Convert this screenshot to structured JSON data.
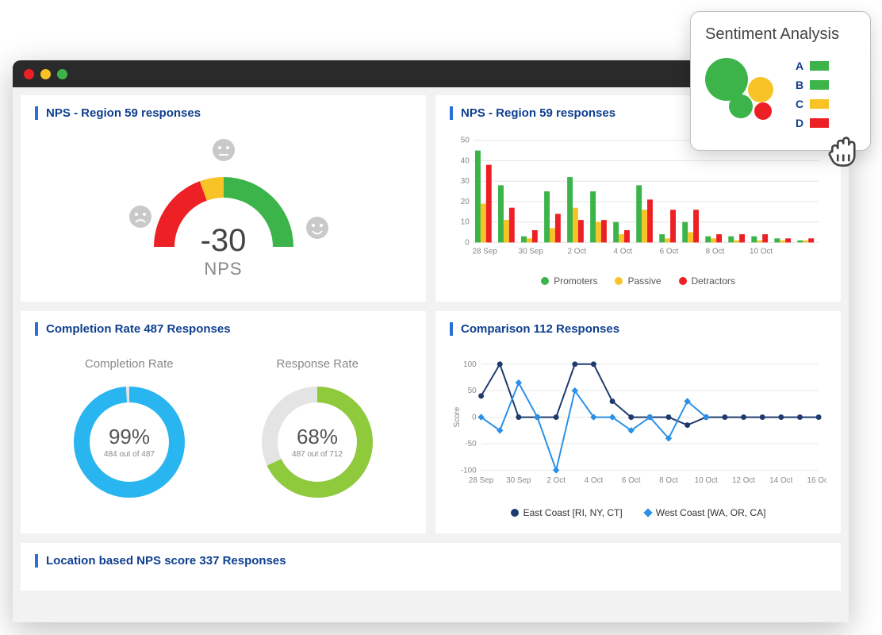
{
  "colors": {
    "promoter": "#3cb44a",
    "passive": "#f7c327",
    "detractor": "#ec2025",
    "donut_blue": "#29b6f0",
    "donut_green": "#8fc93c",
    "donut_track": "#e4e4e4",
    "title": "#0f3f8f",
    "accent": "#2a6fd6",
    "east_line": "#1f3a6e",
    "west_line": "#2a90e8",
    "grid": "#e6e6e6",
    "face": "#c9c9c9"
  },
  "gauge": {
    "title": "NPS - Region 59 responses",
    "score": "-30",
    "label": "NPS",
    "segments": [
      {
        "color": "#ec2025",
        "start": 180,
        "end": 110
      },
      {
        "color": "#f7c327",
        "start": 110,
        "end": 90
      },
      {
        "color": "#3cb44a",
        "start": 90,
        "end": 0
      }
    ]
  },
  "barChart": {
    "title": "NPS - Region 59 responses",
    "ylim": [
      0,
      50
    ],
    "ytick_step": 10,
    "categories": [
      "28 Sep",
      "",
      "30 Sep",
      "",
      "2 Oct",
      "",
      "4 Oct",
      "",
      "6 Oct",
      "",
      "8 Oct",
      "",
      "10 Oct",
      "",
      ""
    ],
    "series": [
      {
        "name": "Promoters",
        "color": "#3cb44a",
        "values": [
          45,
          28,
          3,
          25,
          32,
          25,
          10,
          28,
          4,
          10,
          3,
          3,
          3,
          2,
          1
        ]
      },
      {
        "name": "Passive",
        "color": "#f7c327",
        "values": [
          19,
          11,
          2,
          7,
          17,
          10,
          4,
          16,
          2,
          5,
          2,
          1,
          1,
          1,
          1
        ]
      },
      {
        "name": "Detractors",
        "color": "#ec2025",
        "values": [
          38,
          17,
          6,
          14,
          11,
          11,
          6,
          21,
          16,
          16,
          4,
          4,
          4,
          2,
          2
        ]
      }
    ],
    "legend": [
      {
        "label": "Promoters",
        "color": "#3cb44a"
      },
      {
        "label": "Passive",
        "color": "#f7c327"
      },
      {
        "label": "Detractors",
        "color": "#ec2025"
      }
    ]
  },
  "completion": {
    "title": "Completion Rate 487 Responses",
    "donuts": [
      {
        "title": "Completion Rate",
        "pct": 99,
        "sub": "484 out of 487",
        "color": "#29b6f0"
      },
      {
        "title": "Response Rate",
        "pct": 68,
        "sub": "487 out of 712",
        "color": "#8fc93c"
      }
    ]
  },
  "comparison": {
    "title": "Comparison 112 Responses",
    "ylabel": "Score",
    "ylim": [
      -100,
      100
    ],
    "ytick_step": 50,
    "categories": [
      "28 Sep",
      "30 Sep",
      "2 Oct",
      "4 Oct",
      "6 Oct",
      "8 Oct",
      "10 Oct",
      "12 Oct",
      "14 Oct",
      "16 Oct"
    ],
    "series": [
      {
        "name": "East Coast [RI, NY, CT]",
        "color": "#1f3a6e",
        "marker": "circle",
        "values": [
          40,
          100,
          0,
          0,
          0,
          100,
          100,
          30,
          0,
          0,
          0,
          -15,
          0,
          0,
          0,
          0,
          0,
          0,
          0
        ]
      },
      {
        "name": "West Coast [WA, OR, CA]",
        "color": "#2a90e8",
        "marker": "diamond",
        "values": [
          0,
          -25,
          65,
          0,
          -100,
          50,
          0,
          0,
          -25,
          0,
          -40,
          30,
          0
        ]
      }
    ]
  },
  "location": {
    "title": "Location based NPS score 337 Responses"
  },
  "popup": {
    "title": "Sentiment Analysis",
    "bubbles": [
      {
        "color": "#3cb44a",
        "size": 54,
        "x": 0,
        "y": 4
      },
      {
        "color": "#3cb44a",
        "size": 30,
        "x": 30,
        "y": 50
      },
      {
        "color": "#f7c327",
        "size": 32,
        "x": 54,
        "y": 28
      },
      {
        "color": "#ec2025",
        "size": 22,
        "x": 62,
        "y": 60
      }
    ],
    "legend": [
      {
        "label": "A",
        "color": "#3cb44a"
      },
      {
        "label": "B",
        "color": "#3cb44a"
      },
      {
        "label": "C",
        "color": "#f7c327"
      },
      {
        "label": "D",
        "color": "#ec2025"
      }
    ]
  }
}
